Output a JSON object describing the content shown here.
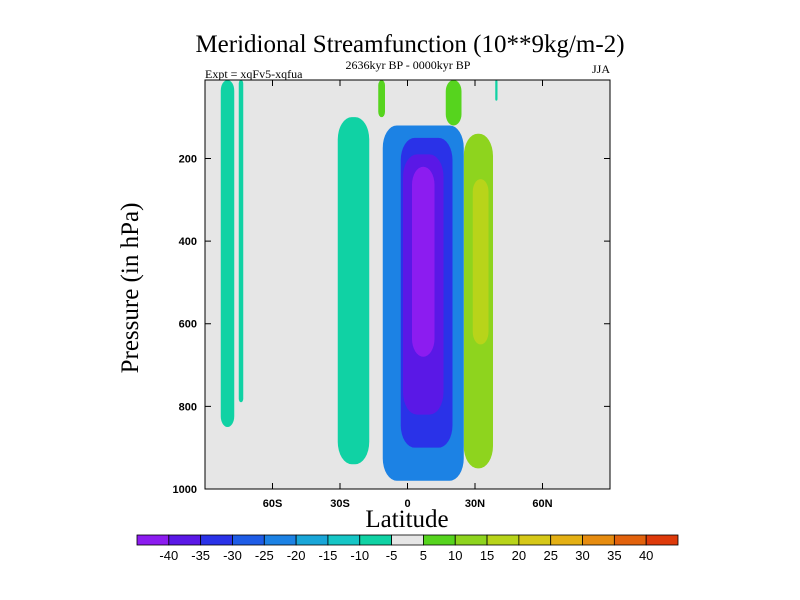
{
  "chart_data": {
    "type": "contour",
    "title": "Meridional Streamfunction (10**9kg/m-2)",
    "subtitle_left": "Expt = xqFv5-xqfua",
    "subtitle_center": "2636kyr BP - 0000kyr BP",
    "subtitle_right": "JJA",
    "xlabel": "Latitude",
    "ylabel": "Pressure (in hPa)",
    "xlim": [
      -90,
      90
    ],
    "ylim": [
      1000,
      10
    ],
    "x_ticks": [
      {
        "value": -60,
        "label": "60S"
      },
      {
        "value": -30,
        "label": "30S"
      },
      {
        "value": 0,
        "label": "0"
      },
      {
        "value": 30,
        "label": "30N"
      },
      {
        "value": 60,
        "label": "60N"
      }
    ],
    "y_ticks": [
      {
        "value": 200,
        "label": "200"
      },
      {
        "value": 400,
        "label": "400"
      },
      {
        "value": 600,
        "label": "600"
      },
      {
        "value": 800,
        "label": "800"
      },
      {
        "value": 1000,
        "label": "1000"
      }
    ],
    "background_color": "#e6e6e6",
    "colorbar": {
      "labels": [
        "-40",
        "-35",
        "-30",
        "-25",
        "-20",
        "-15",
        "-10",
        "-5",
        "5",
        "10",
        "15",
        "20",
        "25",
        "30",
        "35",
        "40"
      ],
      "colors": [
        "#8c1cf0",
        "#5a18e6",
        "#2a32e8",
        "#1e5ce6",
        "#1c82e4",
        "#19a6d8",
        "#16c6c6",
        "#10d2a4",
        "#e6e6e6",
        "#56d41e",
        "#8ed41e",
        "#b8d41a",
        "#d6c818",
        "#e4b014",
        "#e68c10",
        "#e2620c",
        "#de3a0a"
      ]
    },
    "regions": [
      {
        "name": "negative-core-equator",
        "level": -40,
        "lat_range": [
          2,
          12
        ],
        "p_range": [
          220,
          680
        ]
      },
      {
        "name": "negative-band-equator",
        "level": -35,
        "lat_range": [
          -2,
          16
        ],
        "p_range": [
          190,
          820
        ]
      },
      {
        "name": "negative-lower-extension",
        "level": -30,
        "lat_range": [
          -3,
          20
        ],
        "p_range": [
          150,
          900
        ]
      },
      {
        "name": "negative-outer-band",
        "level": -20,
        "lat_range": [
          -11,
          25
        ],
        "p_range": [
          120,
          980
        ]
      },
      {
        "name": "southern-band-30s",
        "level": -5,
        "lat_range": [
          -31,
          -17
        ],
        "p_range": [
          100,
          940
        ]
      },
      {
        "name": "southern-band-75s",
        "level": -5,
        "lat_range": [
          -83,
          -77
        ],
        "p_range": [
          10,
          850
        ]
      },
      {
        "name": "southern-band-71s",
        "level": -5,
        "lat_range": [
          -75,
          -73
        ],
        "p_range": [
          10,
          790
        ]
      },
      {
        "name": "northern-positive-band",
        "level": 10,
        "lat_range": [
          25,
          38
        ],
        "p_range": [
          140,
          950
        ]
      },
      {
        "name": "northern-positive-core",
        "level": 15,
        "lat_range": [
          29,
          36
        ],
        "p_range": [
          250,
          650
        ]
      },
      {
        "name": "upper-positive-spike-equator",
        "level": 5,
        "lat_range": [
          -13,
          -10
        ],
        "p_range": [
          10,
          100
        ]
      },
      {
        "name": "upper-positive-spike-30n",
        "level": 5,
        "lat_range": [
          17,
          24
        ],
        "p_range": [
          10,
          120
        ]
      },
      {
        "name": "upper-negative-spike-40n",
        "level": -5,
        "lat_range": [
          39,
          40
        ],
        "p_range": [
          10,
          60
        ]
      }
    ]
  }
}
